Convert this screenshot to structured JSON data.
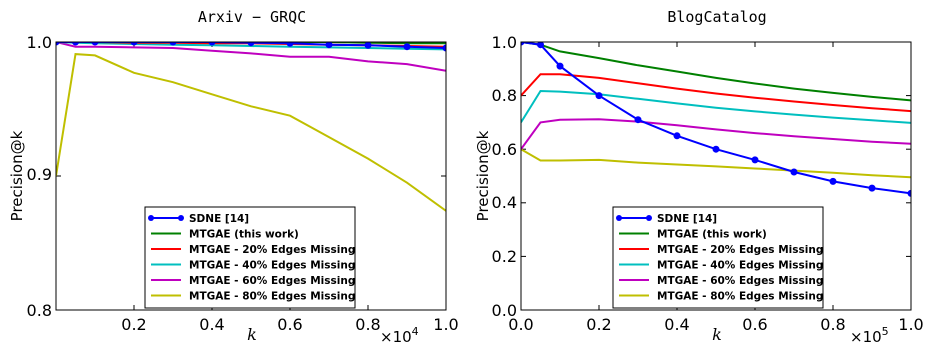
{
  "chart_data": [
    {
      "type": "line",
      "title": "Arxiv − GRQC",
      "xlabel": "k",
      "ylabel": "Precision@k",
      "x_multiplier": "×10",
      "x_multiplier_exp": "4",
      "xlim": [
        0,
        10000
      ],
      "ylim": [
        0.8,
        1.0
      ],
      "xtick_labels": [
        "0.2",
        "0.4",
        "0.6",
        "0.8",
        "1.0"
      ],
      "ytick_labels": [
        "0.8",
        "0.9",
        "1.0"
      ],
      "legend_position": "lower-center",
      "series": [
        {
          "name": "SDNE [14]",
          "color": "#0000ff",
          "marker": "circle",
          "x": [
            0,
            500,
            1000,
            2000,
            3000,
            4000,
            5000,
            6000,
            7000,
            8000,
            9000,
            10000
          ],
          "y": [
            1.0,
            1.0,
            1.0,
            1.0,
            1.0,
            1.0,
            0.9995,
            0.999,
            0.998,
            0.9975,
            0.9965,
            0.9955
          ]
        },
        {
          "name": "MTGAE (this work)",
          "color": "#008000",
          "x": [
            0,
            500,
            1000,
            2000,
            3000,
            4000,
            5000,
            6000,
            7000,
            8000,
            9000,
            10000
          ],
          "y": [
            1.0,
            1.0,
            1.0,
            1.0,
            1.0,
            1.0,
            1.0,
            1.0,
            1.0,
            0.9995,
            0.999,
            0.999
          ]
        },
        {
          "name": "MTGAE - 20% Edges Missing",
          "color": "#ff0000",
          "x": [
            0,
            500,
            1000,
            2000,
            3000,
            4000,
            5000,
            6000,
            7000,
            8000,
            9000,
            10000
          ],
          "y": [
            1.0,
            1.0,
            1.0,
            0.9995,
            0.9995,
            0.999,
            0.999,
            0.9985,
            0.998,
            0.9975,
            0.997,
            0.9965
          ]
        },
        {
          "name": "MTGAE - 40% Edges Missing",
          "color": "#00bfbf",
          "x": [
            0,
            500,
            1000,
            2000,
            3000,
            4000,
            5000,
            6000,
            7000,
            8000,
            9000,
            10000
          ],
          "y": [
            1.0,
            0.9995,
            0.999,
            0.9985,
            0.998,
            0.9975,
            0.997,
            0.9965,
            0.996,
            0.9955,
            0.995,
            0.9945
          ]
        },
        {
          "name": "MTGAE - 60% Edges Missing",
          "color": "#bf00bf",
          "x": [
            0,
            500,
            1000,
            2000,
            3000,
            4000,
            5000,
            6000,
            7000,
            8000,
            9000,
            10000
          ],
          "y": [
            1.0,
            0.9965,
            0.9965,
            0.996,
            0.9955,
            0.9935,
            0.9915,
            0.989,
            0.989,
            0.9855,
            0.9835,
            0.9785
          ]
        },
        {
          "name": "MTGAE - 80% Edges Missing",
          "color": "#bfbf00",
          "x": [
            0,
            500,
            1000,
            2000,
            3000,
            4000,
            5000,
            6000,
            7000,
            8000,
            9000,
            10000
          ],
          "y": [
            0.9,
            0.991,
            0.99,
            0.977,
            0.97,
            0.961,
            0.952,
            0.945,
            0.929,
            0.913,
            0.895,
            0.874
          ]
        }
      ]
    },
    {
      "type": "line",
      "title": "BlogCatalog",
      "xlabel": "k",
      "ylabel": "Precision@k",
      "x_multiplier": "×10",
      "x_multiplier_exp": "5",
      "xlim": [
        0,
        100000
      ],
      "ylim": [
        0,
        1.0
      ],
      "xtick_labels": [
        "0.0",
        "0.2",
        "0.4",
        "0.6",
        "0.8",
        "1.0"
      ],
      "ytick_labels": [
        "0.0",
        "0.2",
        "0.4",
        "0.6",
        "0.8",
        "1.0"
      ],
      "legend_position": "lower-center",
      "series": [
        {
          "name": "SDNE [14]",
          "color": "#0000ff",
          "marker": "circle",
          "x": [
            0,
            5000,
            10000,
            20000,
            30000,
            40000,
            50000,
            60000,
            70000,
            80000,
            90000,
            100000
          ],
          "y": [
            1.0,
            0.99,
            0.91,
            0.8,
            0.71,
            0.65,
            0.6,
            0.56,
            0.515,
            0.48,
            0.455,
            0.435
          ]
        },
        {
          "name": "MTGAE (this work)",
          "color": "#008000",
          "x": [
            0,
            5000,
            10000,
            20000,
            30000,
            40000,
            50000,
            60000,
            70000,
            80000,
            90000,
            100000
          ],
          "y": [
            1.0,
            0.99,
            0.965,
            0.94,
            0.913,
            0.89,
            0.866,
            0.845,
            0.826,
            0.81,
            0.795,
            0.782
          ]
        },
        {
          "name": "MTGAE - 20% Edges Missing",
          "color": "#ff0000",
          "x": [
            0,
            5000,
            10000,
            20000,
            30000,
            40000,
            50000,
            60000,
            70000,
            80000,
            90000,
            100000
          ],
          "y": [
            0.8,
            0.88,
            0.88,
            0.866,
            0.846,
            0.826,
            0.808,
            0.792,
            0.778,
            0.765,
            0.753,
            0.742
          ]
        },
        {
          "name": "MTGAE - 40% Edges Missing",
          "color": "#00bfbf",
          "x": [
            0,
            5000,
            10000,
            20000,
            30000,
            40000,
            50000,
            60000,
            70000,
            80000,
            90000,
            100000
          ],
          "y": [
            0.7,
            0.817,
            0.815,
            0.805,
            0.788,
            0.771,
            0.755,
            0.741,
            0.729,
            0.718,
            0.708,
            0.698
          ]
        },
        {
          "name": "MTGAE - 60% Edges Missing",
          "color": "#bf00bf",
          "x": [
            0,
            5000,
            10000,
            20000,
            30000,
            40000,
            50000,
            60000,
            70000,
            80000,
            90000,
            100000
          ],
          "y": [
            0.6,
            0.7,
            0.71,
            0.712,
            0.703,
            0.689,
            0.674,
            0.66,
            0.648,
            0.638,
            0.628,
            0.62
          ]
        },
        {
          "name": "MTGAE - 80% Edges Missing",
          "color": "#bfbf00",
          "x": [
            0,
            5000,
            10000,
            20000,
            30000,
            40000,
            50000,
            60000,
            70000,
            80000,
            90000,
            100000
          ],
          "y": [
            0.6,
            0.558,
            0.558,
            0.56,
            0.55,
            0.543,
            0.536,
            0.528,
            0.52,
            0.512,
            0.503,
            0.495
          ]
        }
      ]
    }
  ]
}
